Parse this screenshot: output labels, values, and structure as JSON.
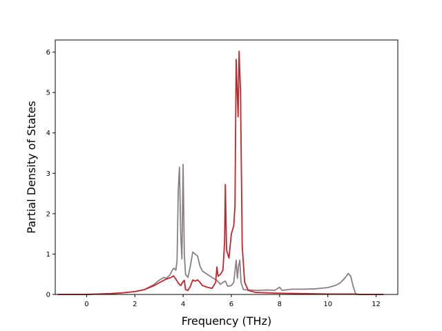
{
  "chart_data": {
    "type": "line",
    "title": "",
    "xlabel": "Frequency (THz)",
    "ylabel": "Partial Density of States",
    "xlim": [
      -1.3,
      12.9
    ],
    "ylim": [
      0,
      6.3
    ],
    "xticks": [
      0,
      2,
      4,
      6,
      8,
      10,
      12
    ],
    "yticks": [
      0,
      1,
      2,
      3,
      4,
      5,
      6
    ],
    "grid": false,
    "legend": "none",
    "series": [
      {
        "color": "#8a7f82",
        "points": [
          [
            -1.2,
            0
          ],
          [
            0,
            0
          ],
          [
            0.5,
            0.01
          ],
          [
            1.0,
            0.02
          ],
          [
            1.5,
            0.04
          ],
          [
            2.0,
            0.07
          ],
          [
            2.4,
            0.12
          ],
          [
            2.8,
            0.25
          ],
          [
            3.0,
            0.35
          ],
          [
            3.2,
            0.42
          ],
          [
            3.3,
            0.4
          ],
          [
            3.45,
            0.48
          ],
          [
            3.55,
            0.6
          ],
          [
            3.62,
            0.65
          ],
          [
            3.7,
            0.6
          ],
          [
            3.75,
            0.85
          ],
          [
            3.8,
            2.6
          ],
          [
            3.85,
            3.15
          ],
          [
            3.9,
            1.5
          ],
          [
            3.95,
            0.88
          ],
          [
            4.0,
            3.22
          ],
          [
            4.05,
            1.0
          ],
          [
            4.1,
            0.5
          ],
          [
            4.2,
            0.42
          ],
          [
            4.3,
            0.7
          ],
          [
            4.4,
            1.05
          ],
          [
            4.5,
            1.0
          ],
          [
            4.6,
            0.95
          ],
          [
            4.7,
            0.7
          ],
          [
            4.8,
            0.58
          ],
          [
            5.0,
            0.5
          ],
          [
            5.2,
            0.42
          ],
          [
            5.4,
            0.35
          ],
          [
            5.55,
            0.25
          ],
          [
            5.65,
            0.3
          ],
          [
            5.75,
            0.33
          ],
          [
            5.85,
            0.2
          ],
          [
            6.0,
            0.22
          ],
          [
            6.1,
            0.3
          ],
          [
            6.2,
            0.85
          ],
          [
            6.25,
            0.4
          ],
          [
            6.3,
            0.7
          ],
          [
            6.35,
            0.85
          ],
          [
            6.4,
            0.3
          ],
          [
            6.5,
            0.12
          ],
          [
            7.0,
            0.1
          ],
          [
            7.5,
            0.11
          ],
          [
            7.8,
            0.1
          ],
          [
            8.0,
            0.18
          ],
          [
            8.1,
            0.1
          ],
          [
            8.5,
            0.13
          ],
          [
            9.0,
            0.13
          ],
          [
            9.5,
            0.14
          ],
          [
            10.0,
            0.17
          ],
          [
            10.3,
            0.22
          ],
          [
            10.5,
            0.28
          ],
          [
            10.7,
            0.4
          ],
          [
            10.85,
            0.52
          ],
          [
            10.95,
            0.45
          ],
          [
            11.05,
            0.2
          ],
          [
            11.15,
            0.02
          ],
          [
            11.3,
            0
          ],
          [
            12.3,
            0
          ]
        ]
      },
      {
        "color": "#c8222b",
        "points": [
          [
            -1.2,
            0
          ],
          [
            0,
            0
          ],
          [
            0.5,
            0.01
          ],
          [
            1.0,
            0.02
          ],
          [
            1.5,
            0.04
          ],
          [
            2.0,
            0.07
          ],
          [
            2.4,
            0.12
          ],
          [
            2.8,
            0.22
          ],
          [
            3.1,
            0.32
          ],
          [
            3.3,
            0.38
          ],
          [
            3.5,
            0.42
          ],
          [
            3.6,
            0.46
          ],
          [
            3.7,
            0.38
          ],
          [
            3.8,
            0.28
          ],
          [
            3.9,
            0.22
          ],
          [
            4.0,
            0.32
          ],
          [
            4.05,
            0.35
          ],
          [
            4.1,
            0.12
          ],
          [
            4.2,
            0.1
          ],
          [
            4.3,
            0.2
          ],
          [
            4.4,
            0.36
          ],
          [
            4.5,
            0.33
          ],
          [
            4.6,
            0.36
          ],
          [
            4.7,
            0.3
          ],
          [
            4.8,
            0.22
          ],
          [
            5.0,
            0.18
          ],
          [
            5.2,
            0.15
          ],
          [
            5.35,
            0.3
          ],
          [
            5.4,
            0.68
          ],
          [
            5.45,
            0.45
          ],
          [
            5.55,
            0.5
          ],
          [
            5.65,
            0.6
          ],
          [
            5.72,
            1.3
          ],
          [
            5.75,
            2.72
          ],
          [
            5.8,
            1.1
          ],
          [
            5.9,
            0.9
          ],
          [
            6.0,
            1.5
          ],
          [
            6.1,
            1.7
          ],
          [
            6.15,
            2.2
          ],
          [
            6.2,
            5.82
          ],
          [
            6.25,
            4.9
          ],
          [
            6.28,
            4.4
          ],
          [
            6.32,
            6.02
          ],
          [
            6.38,
            5.0
          ],
          [
            6.45,
            1.2
          ],
          [
            6.55,
            0.3
          ],
          [
            6.7,
            0.1
          ],
          [
            7.0,
            0.05
          ],
          [
            8.0,
            0.03
          ],
          [
            9.0,
            0.02
          ],
          [
            10.0,
            0.01
          ],
          [
            11.0,
            0.01
          ],
          [
            11.3,
            0
          ],
          [
            12.3,
            0
          ]
        ]
      }
    ]
  }
}
